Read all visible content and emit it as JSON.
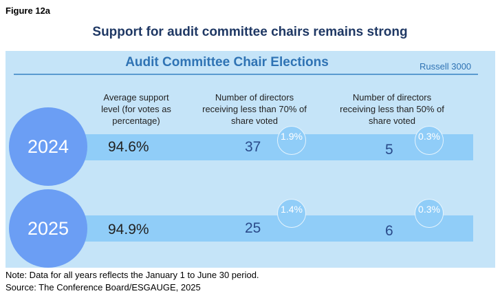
{
  "figure_label": "Figure 12a",
  "title": "Support for audit committee chairs remains strong",
  "panel": {
    "title": "Audit Committee Chair Elections",
    "index": "Russell 3000",
    "headers": [
      "Average support level (for votes as percentage)",
      "Number of directors receiving less than 70% of share voted",
      "Number of directors receiving less than 50% of share voted"
    ],
    "rows": [
      {
        "year": "2024",
        "avg": "94.6%",
        "lt70": "37",
        "lt70_pct": "1.9%",
        "lt50": "5",
        "lt50_pct": "0.3%"
      },
      {
        "year": "2025",
        "avg": "94.9%",
        "lt70": "25",
        "lt70_pct": "1.4%",
        "lt50": "6",
        "lt50_pct": "0.3%"
      }
    ]
  },
  "note": "Note: Data for all years reflects the January 1 to June 30 period.",
  "source": "Source: The Conference Board/ESGAUGE, 2025",
  "colors": {
    "panel": "#c5e4f8",
    "band": "#90cdf8",
    "year_circle": "#6b9ef4",
    "title": "#1f3864",
    "panel_title": "#2f73b4"
  }
}
